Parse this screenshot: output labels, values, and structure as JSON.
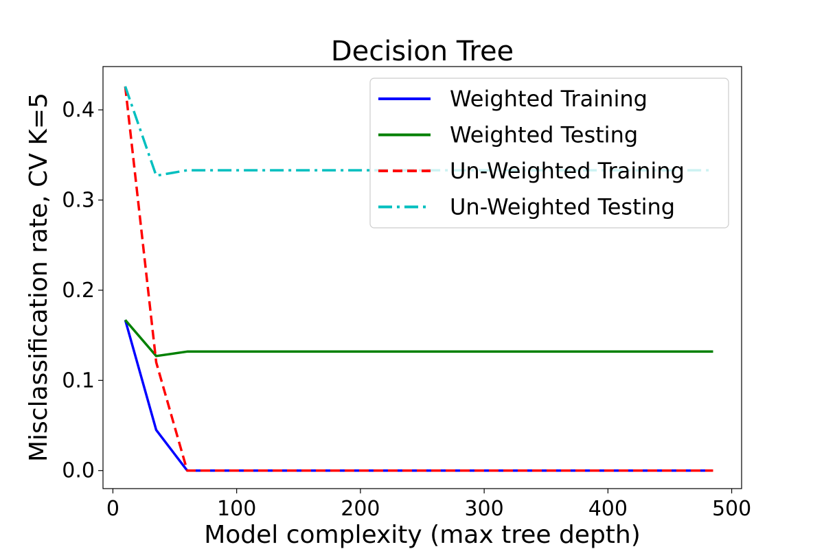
{
  "chart_data": {
    "type": "line",
    "title": "Decision Tree",
    "xlabel": "Model complexity (max tree depth)",
    "ylabel": "Misclassification rate, CV K=5",
    "xlim": [
      -8,
      508
    ],
    "ylim": [
      -0.02,
      0.448
    ],
    "xticks": [
      0,
      100,
      200,
      300,
      400,
      500
    ],
    "xtick_labels": [
      "0",
      "100",
      "200",
      "300",
      "400",
      "500"
    ],
    "yticks": [
      0.0,
      0.1,
      0.2,
      0.3,
      0.4
    ],
    "ytick_labels": [
      "0.0",
      "0.1",
      "0.2",
      "0.3",
      "0.4"
    ],
    "grid": false,
    "legend_position": "top-right",
    "x": [
      10,
      35,
      60,
      85,
      110,
      135,
      160,
      185,
      210,
      235,
      260,
      285,
      310,
      335,
      360,
      385,
      410,
      435,
      460,
      485
    ],
    "series": [
      {
        "name": "Weighted Training",
        "color": "#0000ff",
        "style": "solid",
        "values": [
          0.167,
          0.045,
          0.0,
          0.0,
          0.0,
          0.0,
          0.0,
          0.0,
          0.0,
          0.0,
          0.0,
          0.0,
          0.0,
          0.0,
          0.0,
          0.0,
          0.0,
          0.0,
          0.0,
          0.0
        ]
      },
      {
        "name": "Weighted Testing",
        "color": "#008000",
        "style": "solid",
        "values": [
          0.167,
          0.127,
          0.132,
          0.132,
          0.132,
          0.132,
          0.132,
          0.132,
          0.132,
          0.132,
          0.132,
          0.132,
          0.132,
          0.132,
          0.132,
          0.132,
          0.132,
          0.132,
          0.132,
          0.132
        ]
      },
      {
        "name": "Un-Weighted Training",
        "color": "#ff0000",
        "style": "dashed",
        "values": [
          0.426,
          0.12,
          0.0,
          0.0,
          0.0,
          0.0,
          0.0,
          0.0,
          0.0,
          0.0,
          0.0,
          0.0,
          0.0,
          0.0,
          0.0,
          0.0,
          0.0,
          0.0,
          0.0,
          0.0
        ]
      },
      {
        "name": "Un-Weighted Testing",
        "color": "#00bfbf",
        "style": "dashdot",
        "values": [
          0.426,
          0.327,
          0.333,
          0.333,
          0.333,
          0.333,
          0.333,
          0.333,
          0.333,
          0.333,
          0.333,
          0.333,
          0.333,
          0.333,
          0.333,
          0.333,
          0.333,
          0.333,
          0.333,
          0.333
        ]
      }
    ]
  }
}
